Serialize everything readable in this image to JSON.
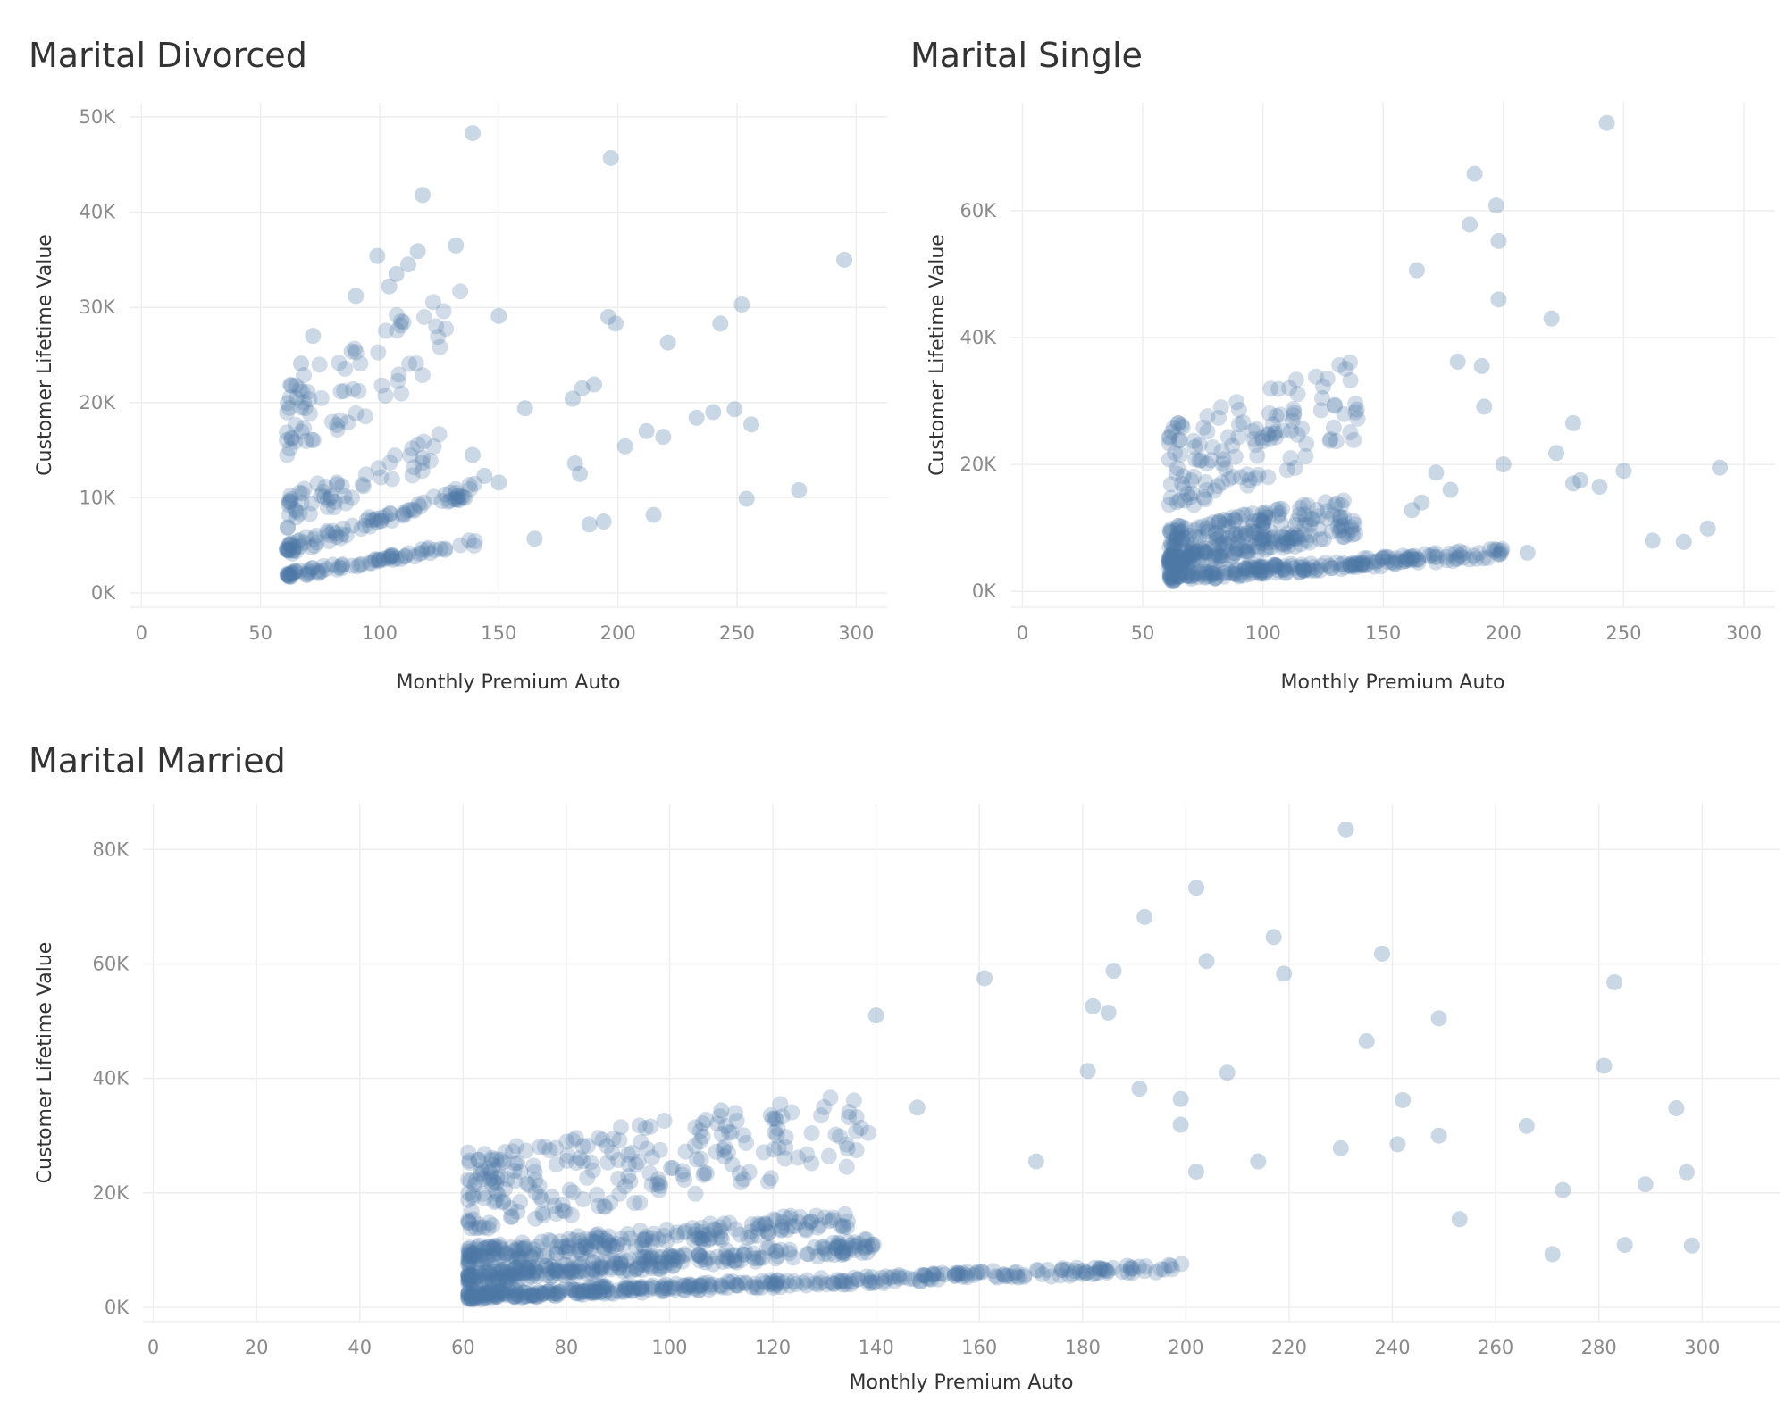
{
  "colors": {
    "point": "#4e79a7",
    "grid": "#eeeeee",
    "tick_text": "#8a8a8a",
    "title_text": "#333333"
  },
  "chart_data": [
    {
      "type": "scatter",
      "title": "Marital Divorced",
      "xlabel": "Monthly Premium Auto",
      "ylabel": "Customer Lifetime Value",
      "xlim": [
        -5,
        313
      ],
      "ylim": [
        -1500,
        51500
      ],
      "x_ticks": [
        0,
        50,
        100,
        150,
        200,
        250,
        300
      ],
      "y_ticks": [
        0,
        10000,
        20000,
        30000,
        40000,
        50000
      ],
      "y_tick_labels": [
        "0K",
        "10K",
        "20K",
        "30K",
        "40K",
        "50K"
      ],
      "bands": [
        {
          "x_min": 61,
          "x_max": 140,
          "y_at_min": 1700,
          "slope": 44,
          "n": 75,
          "jitter": 700
        },
        {
          "x_min": 61,
          "x_max": 140,
          "y_at_min": 4400,
          "slope": 80,
          "n": 85,
          "jitter": 1300
        },
        {
          "x_min": 61,
          "x_max": 125,
          "y_at_min": 8000,
          "slope": 100,
          "n": 55,
          "jitter": 3500
        },
        {
          "x_min": 61,
          "x_max": 135,
          "y_at_min": 16000,
          "slope": 160,
          "n": 70,
          "jitter": 9000
        }
      ],
      "series": [
        {
          "x": [
            139,
            197,
            118,
            107,
            295,
            99,
            132,
            116,
            112,
            90,
            72,
            63,
            67,
            104,
            63,
            118,
            139,
            182,
            215,
            240,
            276,
            150,
            161,
            181,
            185,
            190,
            196,
            199,
            221,
            233,
            243,
            249,
            252,
            254,
            256,
            219,
            212,
            203,
            194,
            188,
            184,
            165,
            150,
            144
          ],
          "y": [
            48300,
            45700,
            41800,
            33500,
            35000,
            35400,
            36500,
            35900,
            34500,
            31200,
            27000,
            21800,
            24100,
            32200,
            16300,
            14200,
            14500,
            13600,
            8200,
            19000,
            10800,
            29100,
            19400,
            20400,
            21500,
            21900,
            29000,
            28300,
            26300,
            18400,
            28300,
            19300,
            30300,
            9900,
            17700,
            16400,
            17000,
            15400,
            7500,
            7200,
            12500,
            5700,
            11600,
            12300
          ]
        }
      ]
    },
    {
      "type": "scatter",
      "title": "Marital Single",
      "xlabel": "Monthly Premium Auto",
      "ylabel": "Customer Lifetime Value",
      "xlim": [
        -5,
        313
      ],
      "ylim": [
        -2500,
        77000
      ],
      "x_ticks": [
        0,
        50,
        100,
        150,
        200,
        250,
        300
      ],
      "y_ticks": [
        0,
        20000,
        40000,
        60000
      ],
      "y_tick_labels": [
        "0K",
        "20K",
        "40K",
        "60K"
      ],
      "bands": [
        {
          "x_min": 61,
          "x_max": 200,
          "y_at_min": 2000,
          "slope": 28,
          "n": 220,
          "jitter": 1500
        },
        {
          "x_min": 61,
          "x_max": 140,
          "y_at_min": 4500,
          "slope": 65,
          "n": 160,
          "jitter": 2500
        },
        {
          "x_min": 61,
          "x_max": 135,
          "y_at_min": 8000,
          "slope": 60,
          "n": 120,
          "jitter": 3500
        },
        {
          "x_min": 61,
          "x_max": 140,
          "y_at_min": 17000,
          "slope": 140,
          "n": 130,
          "jitter": 14000
        }
      ],
      "series": [
        {
          "x": [
            243,
            188,
            197,
            198,
            186,
            198,
            164,
            220,
            181,
            191,
            192,
            285,
            210,
            155,
            290,
            250,
            262,
            275,
            240,
            229,
            232,
            222,
            229,
            200,
            166,
            172,
            178,
            162
          ],
          "y": [
            73800,
            65800,
            60800,
            55200,
            57800,
            46000,
            50600,
            43000,
            36200,
            35500,
            29100,
            9900,
            6100,
            4300,
            19500,
            19000,
            8000,
            7800,
            16500,
            26500,
            17500,
            21800,
            17000,
            20000,
            14000,
            18700,
            16000,
            12800
          ]
        }
      ]
    },
    {
      "type": "scatter",
      "title": "Marital Married",
      "xlabel": "Monthly Premium Auto",
      "ylabel": "Customer Lifetime Value",
      "xlim": [
        -2,
        315
      ],
      "ylim": [
        -2500,
        88000
      ],
      "x_ticks": [
        0,
        20,
        40,
        60,
        80,
        100,
        120,
        140,
        160,
        180,
        200,
        220,
        240,
        260,
        280,
        300
      ],
      "y_ticks": [
        0,
        20000,
        40000,
        60000,
        80000
      ],
      "y_tick_labels": [
        "0K",
        "20K",
        "40K",
        "60K",
        "80K"
      ],
      "bands": [
        {
          "x_min": 61,
          "x_max": 200,
          "y_at_min": 1800,
          "slope": 36,
          "n": 380,
          "jitter": 1400
        },
        {
          "x_min": 61,
          "x_max": 140,
          "y_at_min": 4800,
          "slope": 72,
          "n": 280,
          "jitter": 2400
        },
        {
          "x_min": 61,
          "x_max": 135,
          "y_at_min": 8500,
          "slope": 88,
          "n": 220,
          "jitter": 3200
        },
        {
          "x_min": 61,
          "x_max": 140,
          "y_at_min": 18000,
          "slope": 150,
          "n": 230,
          "jitter": 14000
        }
      ],
      "series": [
        {
          "x": [
            231,
            202,
            192,
            186,
            217,
            161,
            219,
            238,
            204,
            182,
            185,
            140,
            283,
            208,
            235,
            281,
            249,
            199,
            242,
            191,
            181,
            148,
            171,
            199,
            230,
            295,
            266,
            273,
            289,
            249,
            253,
            241,
            297,
            298,
            271,
            285,
            214,
            202,
            110
          ],
          "y": [
            83500,
            73300,
            68200,
            58800,
            64700,
            57500,
            58300,
            61800,
            60500,
            52600,
            51500,
            51000,
            56800,
            41000,
            46500,
            42200,
            50500,
            36400,
            36200,
            38200,
            41300,
            34900,
            25500,
            31900,
            27800,
            34800,
            31700,
            20500,
            21500,
            30000,
            15400,
            28500,
            23600,
            10800,
            9300,
            10900,
            25500,
            23700,
            34400
          ]
        }
      ]
    }
  ]
}
